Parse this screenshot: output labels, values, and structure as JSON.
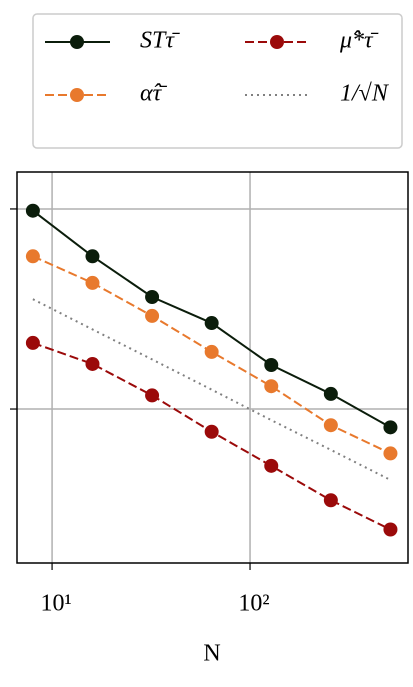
{
  "chart_data": {
    "type": "line",
    "x_label": "N",
    "x": [
      8,
      16,
      32,
      64,
      128,
      256,
      512
    ],
    "series": [
      {
        "name": "STτ̄",
        "color": "#0b1d0b",
        "dash": "solid",
        "marker": true,
        "values": [
          0.98,
          0.58,
          0.363,
          0.269,
          0.166,
          0.119,
          0.081
        ]
      },
      {
        "name": "μ̂*τ̄",
        "color": "#9b0a0a",
        "dash": "dashed",
        "marker": true,
        "values": [
          0.214,
          0.168,
          0.117,
          0.077,
          0.052,
          0.035,
          0.025
        ]
      },
      {
        "name": "α̂τ̄",
        "color": "#e8792d",
        "dash": "dashed",
        "marker": true,
        "values": [
          0.58,
          0.427,
          0.292,
          0.193,
          0.13,
          0.083,
          0.06
        ]
      },
      {
        "name": "1/√N",
        "color": "#808080",
        "dash": "dotted",
        "marker": false,
        "values": [
          0.354,
          0.25,
          0.177,
          0.125,
          0.088,
          0.0625,
          0.0442
        ]
      }
    ],
    "xscale": "log",
    "yscale": "log",
    "xlim": [
      6.65,
      628
    ],
    "ylim": [
      0.017,
      1.53
    ],
    "xticks": [
      {
        "value": 10,
        "label": "10¹"
      },
      {
        "value": 100,
        "label": "10²"
      }
    ],
    "yticks": [
      0.1,
      1
    ],
    "grid": true
  }
}
